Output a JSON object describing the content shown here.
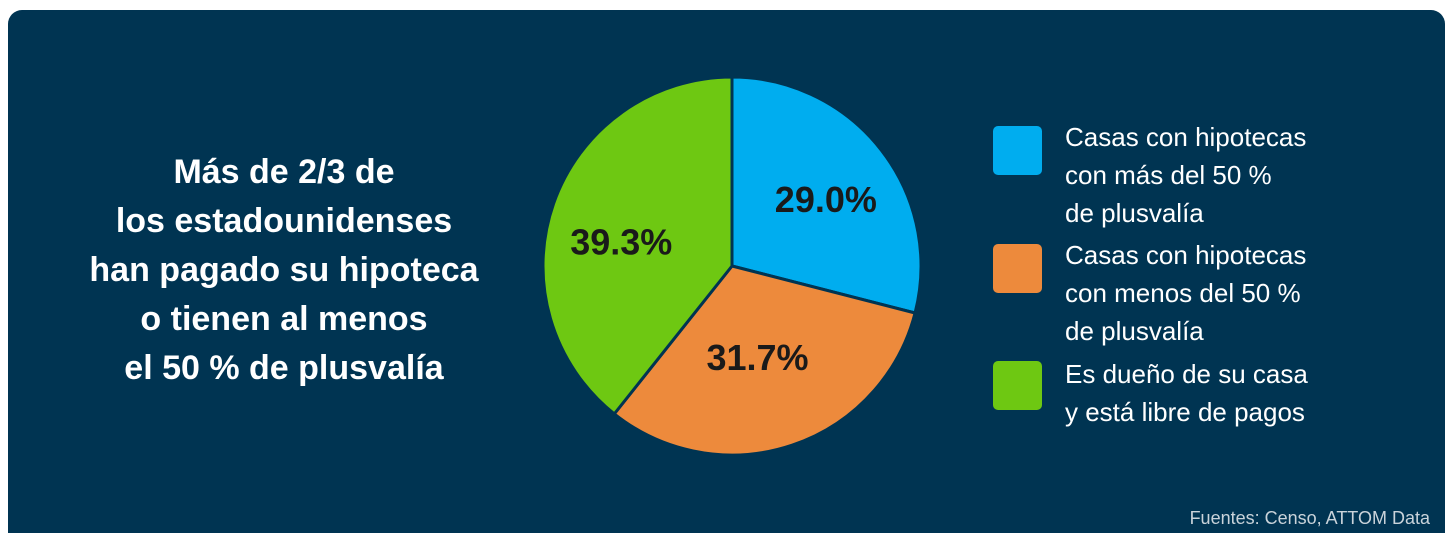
{
  "headline": "Más de 2/3 de\nlos estadounidenses\nhan pagado su hipoteca\no tienen al menos\nel 50 % de plusvalía",
  "source": "Fuentes: Censo, ATTOM Data",
  "colors": {
    "background": "#003452",
    "blue": "#00ADEF",
    "orange": "#ED8A3C",
    "green": "#6EC812",
    "slice_border": "#003452"
  },
  "chart_data": {
    "type": "pie",
    "title": "",
    "slices": [
      {
        "label": "Casas con hipotecas\ncon más del 50 %\nde plusvalía",
        "value": 29.0,
        "value_label": "29.0%",
        "color": "#00ADEF"
      },
      {
        "label": "Casas con hipotecas\ncon menos del 50 %\nde plusvalía",
        "value": 31.7,
        "value_label": "31.7%",
        "color": "#ED8A3C"
      },
      {
        "label": "Es dueño de su casa\ny está libre de pagos",
        "value": 39.3,
        "value_label": "39.3%",
        "color": "#6EC812"
      }
    ],
    "start": "top, clockwise",
    "legend_position": "right"
  }
}
